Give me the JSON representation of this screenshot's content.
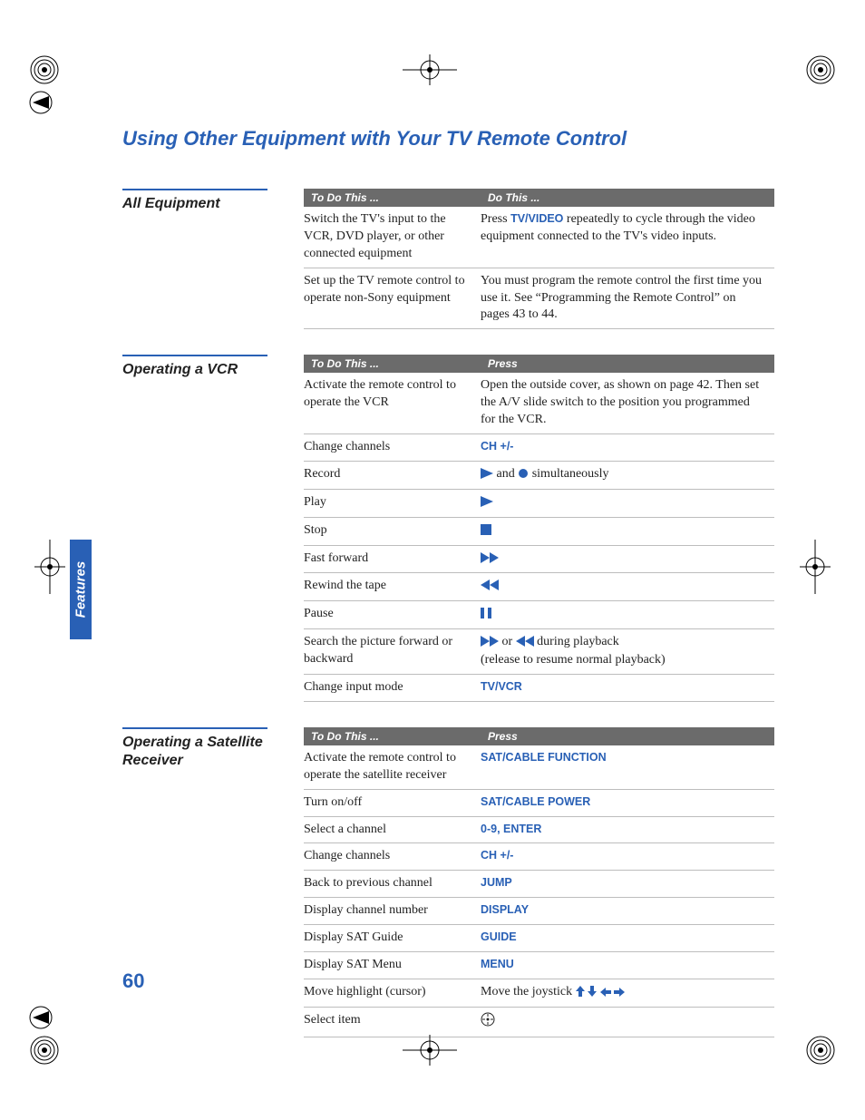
{
  "title": "Using Other Equipment with Your TV Remote Control",
  "pageNumber": "60",
  "sideTab": "Features",
  "colors": {
    "accent": "#2960b5",
    "headerBg": "#6b6b6b",
    "headerText": "#ffffff",
    "rowBorder": "#bdbdbd",
    "bodyText": "#222222"
  },
  "sections": [
    {
      "heading": "All Equipment",
      "headers": [
        "To Do This ...",
        "Do This ..."
      ],
      "rows": [
        {
          "col1": "Switch the TV's input to the VCR, DVD player, or other connected equipment",
          "col2": [
            {
              "t": "Press "
            },
            {
              "t": "TV/VIDEO",
              "kw": true
            },
            {
              "t": " repeatedly to cycle through the video equipment connected to the TV's video inputs."
            }
          ]
        },
        {
          "col1": "Set up the TV remote control to operate non-Sony equipment",
          "col2": [
            {
              "t": "You must program the remote control the first time you use it. See “Programming the Remote Control” on pages 43 to 44."
            }
          ]
        }
      ]
    },
    {
      "heading": "Operating a VCR",
      "headers": [
        "To Do This ...",
        "Press"
      ],
      "rows": [
        {
          "col1": "Activate the remote control to operate the VCR",
          "col2": [
            {
              "t": "Open the outside cover, as shown on page 42. Then set the A/V slide switch to the position you programmed for the VCR."
            }
          ]
        },
        {
          "col1": "Change channels",
          "col2": [
            {
              "t": "CH +/-",
              "kw": true
            }
          ]
        },
        {
          "col1": "Record",
          "col2": [
            {
              "icon": "play"
            },
            {
              "t": " and "
            },
            {
              "icon": "record"
            },
            {
              "t": " simultaneously"
            }
          ]
        },
        {
          "col1": "Play",
          "col2": [
            {
              "icon": "play"
            }
          ]
        },
        {
          "col1": "Stop",
          "col2": [
            {
              "icon": "stop"
            }
          ]
        },
        {
          "col1": "Fast forward",
          "col2": [
            {
              "icon": "ff"
            }
          ]
        },
        {
          "col1": "Rewind the tape",
          "col2": [
            {
              "icon": "rew"
            }
          ]
        },
        {
          "col1": "Pause",
          "col2": [
            {
              "icon": "pause"
            }
          ]
        },
        {
          "col1": "Search the picture forward or backward",
          "col2": [
            {
              "icon": "ff"
            },
            {
              "t": " or "
            },
            {
              "icon": "rew"
            },
            {
              "t": " during playback"
            },
            {
              "br": true
            },
            {
              "t": "(release to resume normal playback)"
            }
          ]
        },
        {
          "col1": "Change input mode",
          "col2": [
            {
              "t": "TV/VCR",
              "kw": true
            }
          ]
        }
      ]
    },
    {
      "heading": "Operating a Satellite Receiver",
      "headers": [
        "To Do This ...",
        "Press"
      ],
      "rows": [
        {
          "col1": "Activate the remote control to operate the satellite receiver",
          "col2": [
            {
              "t": "SAT/CABLE FUNCTION",
              "kw": true
            }
          ]
        },
        {
          "col1": "Turn on/off",
          "col2": [
            {
              "t": "SAT/CABLE POWER",
              "kw": true
            }
          ]
        },
        {
          "col1": "Select a channel",
          "col2": [
            {
              "t": "0-9, ENTER",
              "kw": true
            }
          ]
        },
        {
          "col1": "Change channels",
          "col2": [
            {
              "t": "CH +/-",
              "kw": true
            }
          ]
        },
        {
          "col1": "Back to previous channel",
          "col2": [
            {
              "t": "JUMP",
              "kw": true
            }
          ]
        },
        {
          "col1": "Display channel number",
          "col2": [
            {
              "t": "DISPLAY",
              "kw": true
            }
          ]
        },
        {
          "col1": "Display SAT Guide",
          "col2": [
            {
              "t": "GUIDE",
              "kw": true
            }
          ]
        },
        {
          "col1": "Display SAT Menu",
          "col2": [
            {
              "t": "MENU",
              "kw": true
            }
          ]
        },
        {
          "col1": "Move highlight (cursor)",
          "col2": [
            {
              "t": "Move the joystick "
            },
            {
              "icon": "arrow-up"
            },
            {
              "t": " "
            },
            {
              "icon": "arrow-down"
            },
            {
              "t": " "
            },
            {
              "icon": "arrow-left"
            },
            {
              "t": " "
            },
            {
              "icon": "arrow-right"
            }
          ]
        },
        {
          "col1": "Select item",
          "col2": [
            {
              "icon": "joystick"
            }
          ]
        }
      ]
    }
  ]
}
